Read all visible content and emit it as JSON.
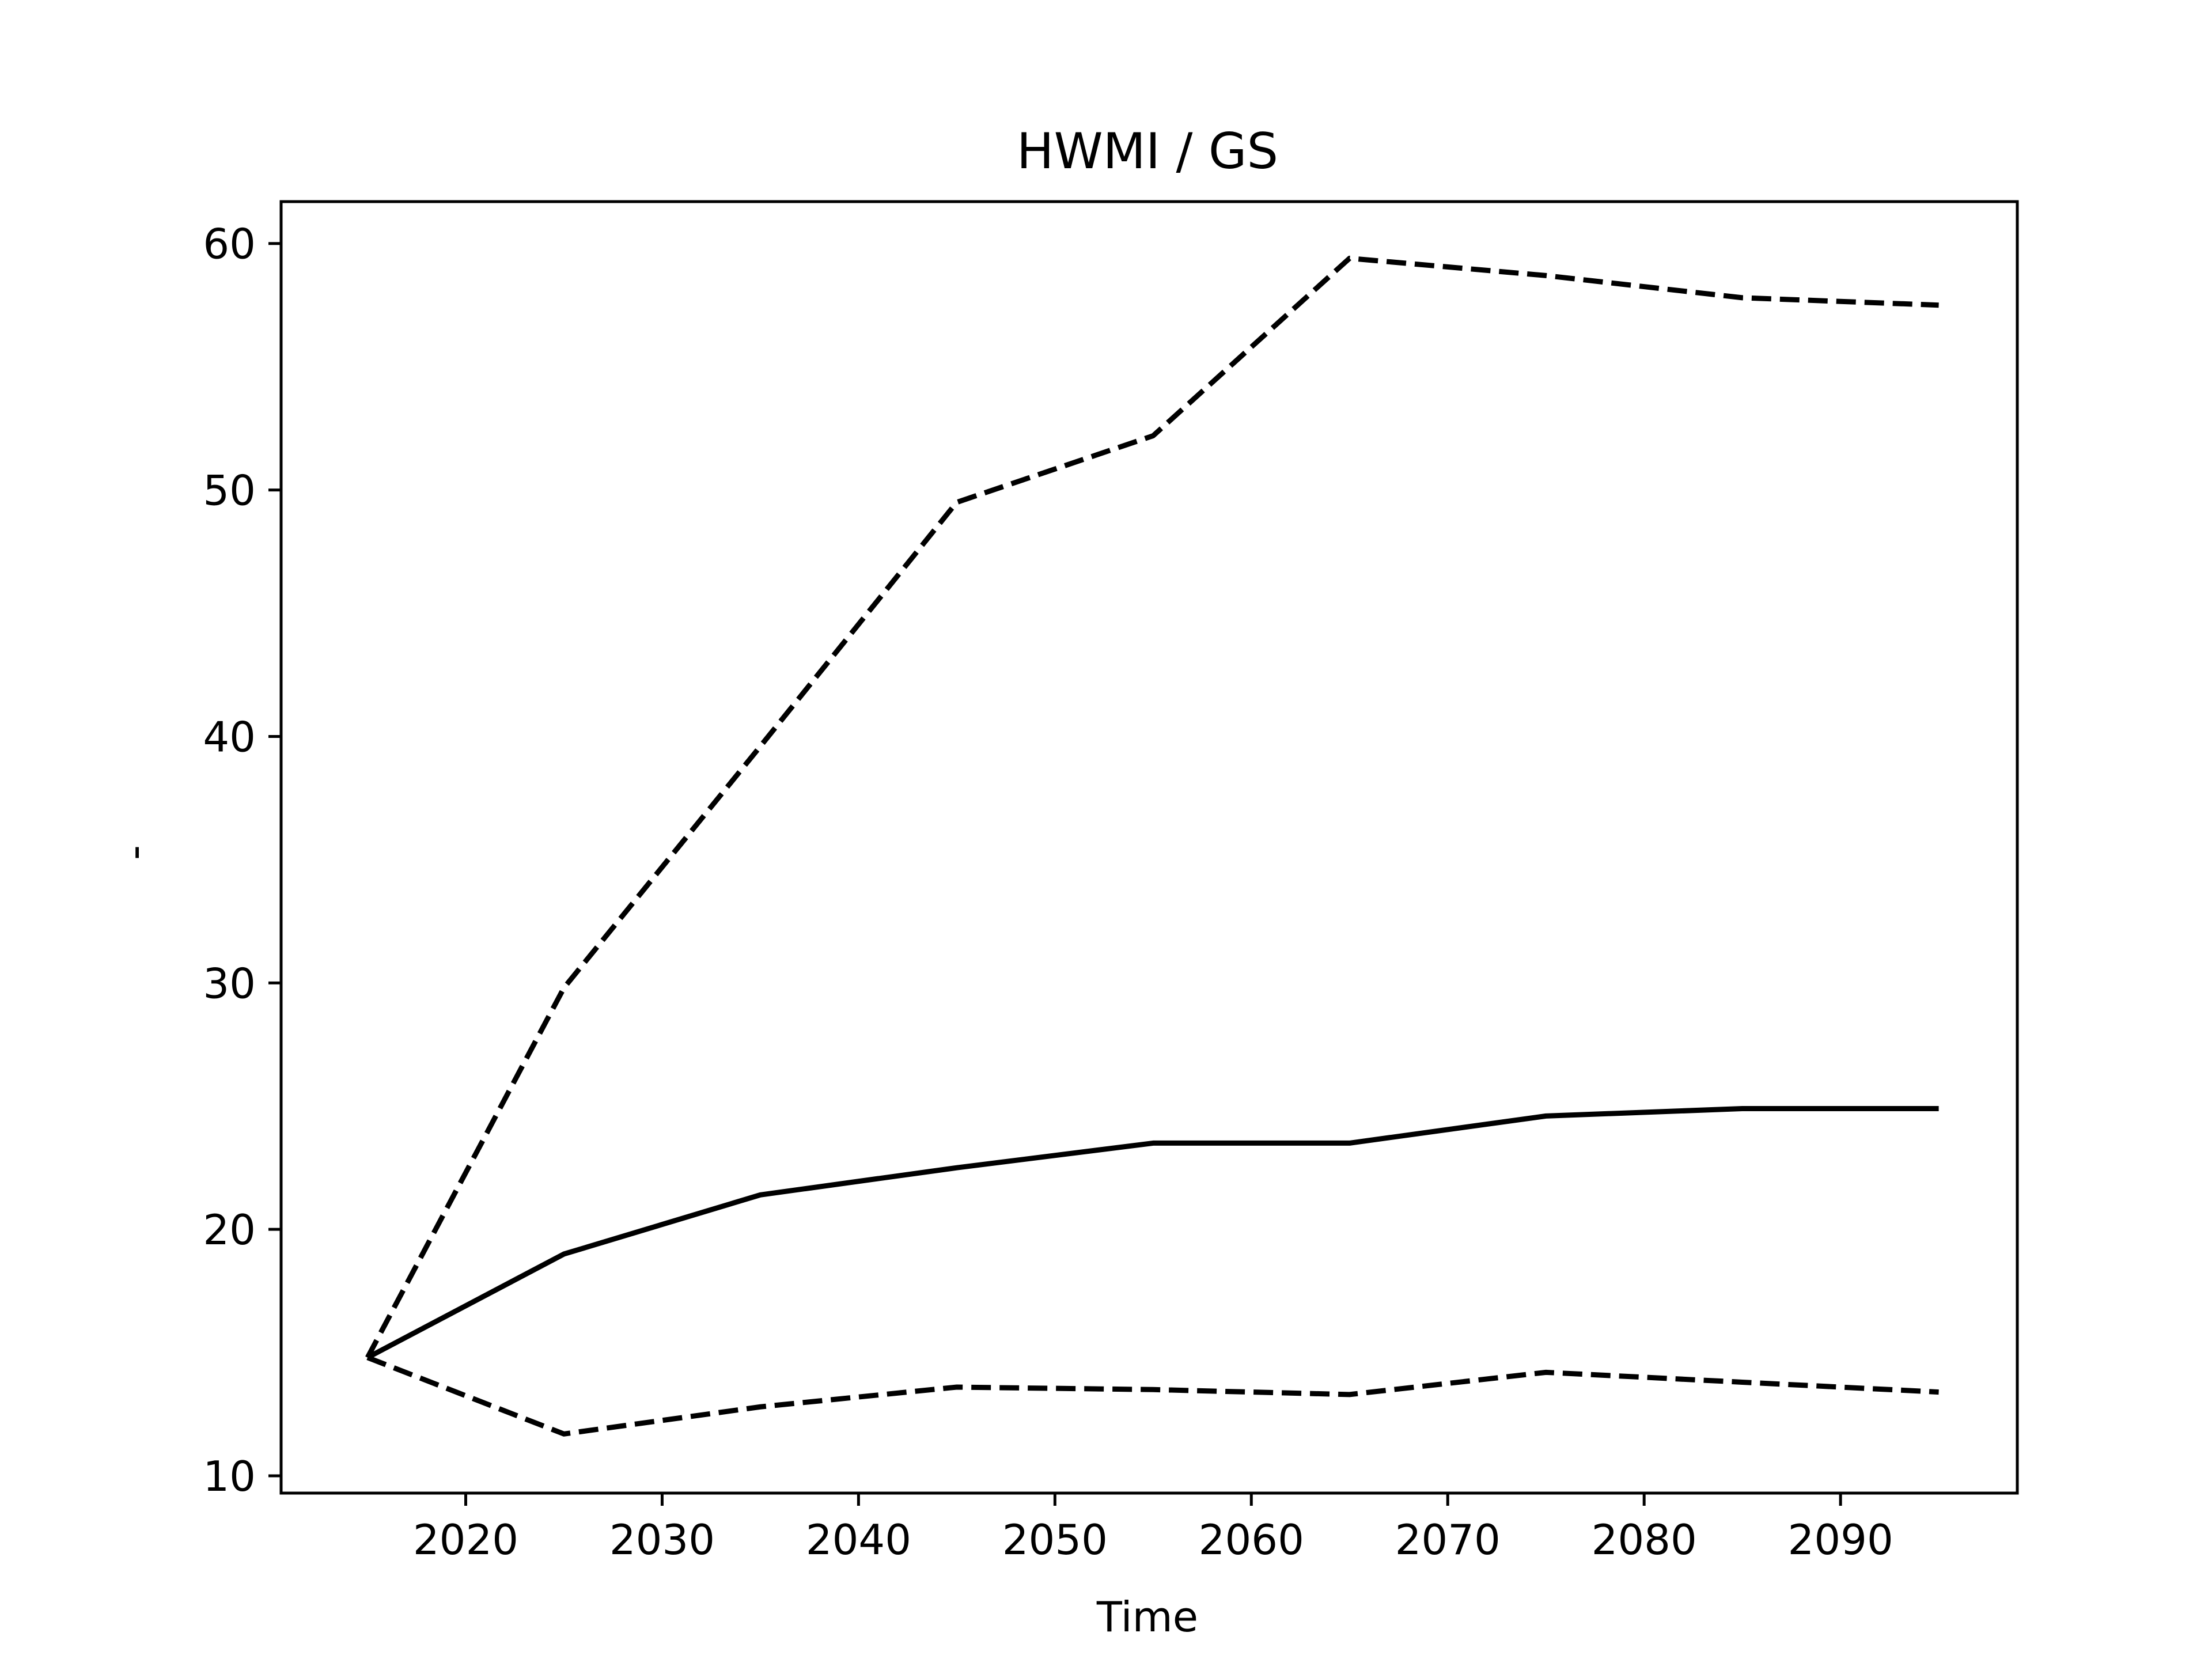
{
  "chart_data": {
    "type": "line",
    "title": "HWMI / GS",
    "xlabel": "Time",
    "ylabel": "-",
    "xlim": [
      2010.6,
      2099.0
    ],
    "ylim": [
      9.3,
      61.7
    ],
    "xticks": [
      2020,
      2030,
      2040,
      2050,
      2060,
      2070,
      2080,
      2090
    ],
    "yticks": [
      10,
      20,
      30,
      40,
      50,
      60
    ],
    "grid": false,
    "x": [
      2015,
      2025,
      2035,
      2045,
      2055,
      2065,
      2075,
      2085,
      2095
    ],
    "series": [
      {
        "values": [
          14.8,
          29.8,
          39.6,
          49.5,
          52.2,
          59.4,
          58.7,
          57.8,
          57.5
        ],
        "style": "dashed",
        "color": "#000000"
      },
      {
        "values": [
          14.8,
          19.0,
          21.4,
          22.5,
          23.5,
          23.5,
          24.6,
          24.9,
          24.9
        ],
        "style": "solid",
        "color": "#000000"
      },
      {
        "values": [
          14.8,
          11.7,
          12.8,
          13.6,
          13.5,
          13.3,
          14.2,
          13.8,
          13.4
        ],
        "style": "dashed",
        "color": "#000000"
      }
    ]
  }
}
